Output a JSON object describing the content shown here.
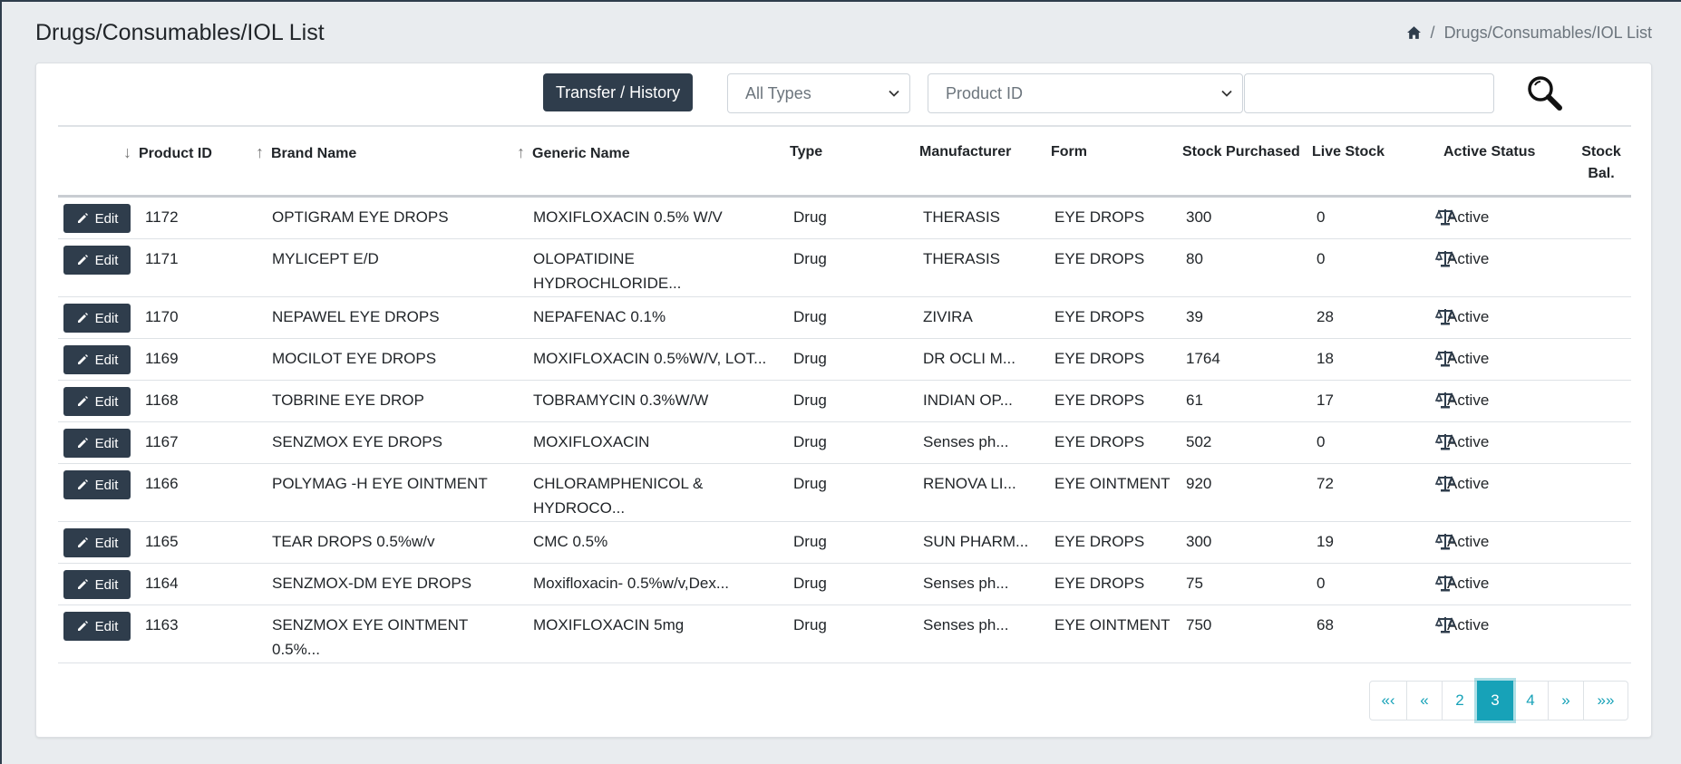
{
  "header": {
    "title": "Drugs/Consumables/IOL List",
    "breadcrumb_sep": "/",
    "breadcrumb_current": "Drugs/Consumables/IOL List"
  },
  "toolbar": {
    "transfer_label": "Transfer / History",
    "type_select_value": "All Types",
    "field_select_value": "Product ID",
    "search_value": ""
  },
  "table": {
    "headers": {
      "product_id": "Product ID",
      "brand_name": "Brand Name",
      "generic_name": "Generic Name",
      "type": "Type",
      "manufacturer": "Manufacturer",
      "form": "Form",
      "stock_purchased": "Stock Purchased",
      "live_stock": "Live Stock",
      "active_status": "Active Status",
      "stock_bal_1": "Stock",
      "stock_bal_2": "Bal."
    },
    "edit_label": "Edit",
    "rows": [
      {
        "id": "1172",
        "brand": "OPTIGRAM EYE DROPS",
        "brand2": "",
        "generic": "MOXIFLOXACIN 0.5% W/V",
        "generic2": "",
        "type": "Drug",
        "mfr": "THERASIS",
        "form": "EYE DROPS",
        "purchased": "300",
        "live": "0",
        "status": "Active"
      },
      {
        "id": "1171",
        "brand": "MYLICEPT E/D",
        "brand2": "",
        "generic": "OLOPATIDINE",
        "generic2": "HYDROCHLORIDE...",
        "type": "Drug",
        "mfr": "THERASIS",
        "form": "EYE DROPS",
        "purchased": "80",
        "live": "0",
        "status": "Active"
      },
      {
        "id": "1170",
        "brand": "NEPAWEL EYE DROPS",
        "brand2": "",
        "generic": "NEPAFENAC 0.1%",
        "generic2": "",
        "type": "Drug",
        "mfr": "ZIVIRA",
        "form": "EYE DROPS",
        "purchased": "39",
        "live": "28",
        "status": "Active"
      },
      {
        "id": "1169",
        "brand": "MOCILOT EYE DROPS",
        "brand2": "",
        "generic": "MOXIFLOXACIN 0.5%W/V, LOT...",
        "generic2": "",
        "type": "Drug",
        "mfr": "DR OCLI M...",
        "form": "EYE DROPS",
        "purchased": "1764",
        "live": "18",
        "status": "Active"
      },
      {
        "id": "1168",
        "brand": "TOBRINE EYE DROP",
        "brand2": "",
        "generic": "TOBRAMYCIN 0.3%W/W",
        "generic2": "",
        "type": "Drug",
        "mfr": "INDIAN OP...",
        "form": "EYE DROPS",
        "purchased": "61",
        "live": "17",
        "status": "Active"
      },
      {
        "id": "1167",
        "brand": "SENZMOX EYE DROPS",
        "brand2": "",
        "generic": "MOXIFLOXACIN",
        "generic2": "",
        "type": "Drug",
        "mfr": "Senses ph...",
        "form": "EYE DROPS",
        "purchased": "502",
        "live": "0",
        "status": "Active"
      },
      {
        "id": "1166",
        "brand": "POLYMAG -H EYE OINTMENT",
        "brand2": "",
        "generic": "CHLORAMPHENICOL &",
        "generic2": "HYDROCO...",
        "type": "Drug",
        "mfr": "RENOVA LI...",
        "form": "EYE OINTMENT",
        "purchased": "920",
        "live": "72",
        "status": "Active"
      },
      {
        "id": "1165",
        "brand": "TEAR DROPS 0.5%w/v",
        "brand2": "",
        "generic": "CMC 0.5%",
        "generic2": "",
        "type": "Drug",
        "mfr": "SUN PHARM...",
        "form": "EYE DROPS",
        "purchased": "300",
        "live": "19",
        "status": "Active"
      },
      {
        "id": "1164",
        "brand": "SENZMOX-DM EYE DROPS",
        "brand2": "",
        "generic": "Moxifloxacin- 0.5%w/v,Dex...",
        "generic2": "",
        "type": "Drug",
        "mfr": "Senses ph...",
        "form": "EYE DROPS",
        "purchased": "75",
        "live": "0",
        "status": "Active"
      },
      {
        "id": "1163",
        "brand": "SENZMOX EYE OINTMENT",
        "brand2": "0.5%...",
        "generic": "MOXIFLOXACIN 5mg",
        "generic2": "",
        "type": "Drug",
        "mfr": "Senses ph...",
        "form": "EYE OINTMENT",
        "purchased": "750",
        "live": "68",
        "status": "Active"
      }
    ]
  },
  "pagination": {
    "items": [
      {
        "label": "«‹",
        "active": false
      },
      {
        "label": "«",
        "active": false
      },
      {
        "label": "2",
        "active": false
      },
      {
        "label": "3",
        "active": true
      },
      {
        "label": "4",
        "active": false
      },
      {
        "label": "»",
        "active": false
      },
      {
        "label": "»»",
        "active": false
      }
    ]
  },
  "colors": {
    "primary_dark": "#2f3d4c",
    "accent": "#17a2b8",
    "background": "#e9ecef"
  }
}
